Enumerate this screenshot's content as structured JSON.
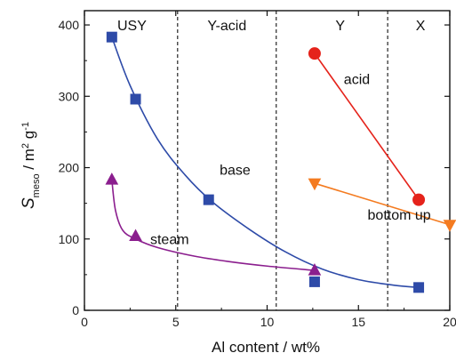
{
  "chart_data": {
    "type": "scatter",
    "xlabel": "Al content / wt%",
    "ylabel": {
      "main": "S",
      "sub": "meso",
      "rest": " / m",
      "sup1": "2",
      "rest2": " g",
      "sup2": "-1"
    },
    "xlim": [
      0,
      20
    ],
    "ylim": [
      0,
      420
    ],
    "xticks": [
      0,
      5,
      10,
      15,
      20
    ],
    "yticks": [
      0,
      100,
      200,
      300,
      400
    ],
    "grid": false,
    "regions": [
      {
        "label": "USY",
        "x_center": 2.6
      },
      {
        "label": "Y-acid",
        "x_center": 7.8
      },
      {
        "label": "Y",
        "x_center": 14.0
      },
      {
        "label": "X",
        "x_center": 18.4
      }
    ],
    "dividers": [
      5.1,
      10.5,
      16.6
    ],
    "series": [
      {
        "name": "base",
        "marker": "square",
        "color": "#2E4BA8",
        "x": [
          1.5,
          2.8,
          6.8,
          12.6,
          18.3
        ],
        "y": [
          383,
          296,
          155,
          40,
          32
        ],
        "fit": "smooth",
        "curve": [
          [
            1.5,
            383
          ],
          [
            2.5,
            315
          ],
          [
            4,
            240
          ],
          [
            5.5,
            190
          ],
          [
            7,
            152
          ],
          [
            9,
            114
          ],
          [
            11,
            82
          ],
          [
            13,
            58
          ],
          [
            15,
            43
          ],
          [
            17,
            35
          ],
          [
            18.3,
            32
          ]
        ]
      },
      {
        "name": "steam",
        "marker": "triangle-up",
        "color": "#8B1E8E",
        "x": [
          1.5,
          2.8,
          12.6
        ],
        "y": [
          183,
          104,
          56
        ],
        "fit": "smooth",
        "curve": [
          [
            1.5,
            183
          ],
          [
            1.7,
            140
          ],
          [
            2.1,
            112
          ],
          [
            2.8,
            100
          ],
          [
            4,
            88
          ],
          [
            6,
            76
          ],
          [
            8,
            68
          ],
          [
            10,
            62
          ],
          [
            12.6,
            56
          ]
        ]
      },
      {
        "name": "acid",
        "marker": "circle",
        "color": "#E5231B",
        "x": [
          12.6,
          18.3
        ],
        "y": [
          360,
          155
        ],
        "fit": "line"
      },
      {
        "name": "bottom up",
        "marker": "triangle-down",
        "color": "#F47B20",
        "x": [
          12.6,
          20.0
        ],
        "y": [
          178,
          120
        ],
        "fit": "line"
      }
    ],
    "annotations": [
      {
        "text": "acid",
        "x": 14.2,
        "y": 317
      },
      {
        "text": "base",
        "x": 7.4,
        "y": 190
      },
      {
        "text": "bottom up",
        "x": 15.5,
        "y": 127
      },
      {
        "text": "steam",
        "x": 3.6,
        "y": 93
      }
    ]
  }
}
